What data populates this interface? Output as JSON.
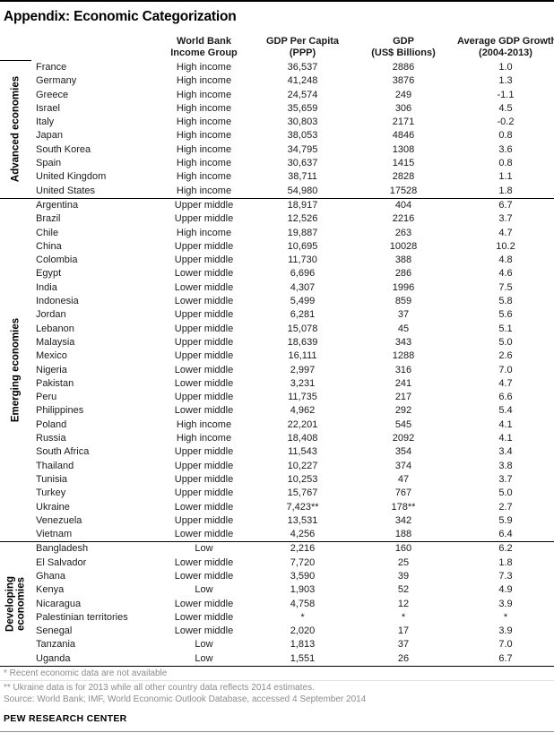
{
  "title": "Appendix: Economic Categorization",
  "branding": "PEW RESEARCH CENTER",
  "colors": {
    "text": "#1a1a1a",
    "footnote_gray": "#8a8c8e",
    "rule_black": "#000000",
    "rule_light": "#e2e2e2",
    "rule_bottom_gray": "#8c8c8c"
  },
  "chart_data": {
    "type": "table",
    "title": "Appendix: Economic Categorization",
    "column_headers": [
      {
        "line1": "World Bank",
        "line2": "Income Group"
      },
      {
        "line1": "GDP Per Capita",
        "line2": "(PPP)"
      },
      {
        "line1": "GDP",
        "line2": "(US$ Billions)"
      },
      {
        "line1": "Average GDP Growth",
        "line2": "(2004-2013)"
      }
    ],
    "groups": [
      {
        "label_lines": [
          "Advanced economies"
        ],
        "rows": [
          [
            "France",
            "High income",
            "36,537",
            "2886",
            "1.0"
          ],
          [
            "Germany",
            "High income",
            "41,248",
            "3876",
            "1.3"
          ],
          [
            "Greece",
            "High income",
            "24,574",
            "249",
            "-1.1"
          ],
          [
            "Israel",
            "High income",
            "35,659",
            "306",
            "4.5"
          ],
          [
            "Italy",
            "High income",
            "30,803",
            "2171",
            "-0.2"
          ],
          [
            "Japan",
            "High income",
            "38,053",
            "4846",
            "0.8"
          ],
          [
            "South Korea",
            "High income",
            "34,795",
            "1308",
            "3.6"
          ],
          [
            "Spain",
            "High income",
            "30,637",
            "1415",
            "0.8"
          ],
          [
            "United Kingdom",
            "High income",
            "38,711",
            "2828",
            "1.1"
          ],
          [
            "United States",
            "High income",
            "54,980",
            "17528",
            "1.8"
          ]
        ]
      },
      {
        "label_lines": [
          "Emerging economies"
        ],
        "rows": [
          [
            "Argentina",
            "Upper middle",
            "18,917",
            "404",
            "6.7"
          ],
          [
            "Brazil",
            "Upper middle",
            "12,526",
            "2216",
            "3.7"
          ],
          [
            "Chile",
            "High income",
            "19,887",
            "263",
            "4.7"
          ],
          [
            "China",
            "Upper middle",
            "10,695",
            "10028",
            "10.2"
          ],
          [
            "Colombia",
            "Upper middle",
            "11,730",
            "388",
            "4.8"
          ],
          [
            "Egypt",
            "Lower middle",
            "6,696",
            "286",
            "4.6"
          ],
          [
            "India",
            "Lower middle",
            "4,307",
            "1996",
            "7.5"
          ],
          [
            "Indonesia",
            "Lower middle",
            "5,499",
            "859",
            "5.8"
          ],
          [
            "Jordan",
            "Upper middle",
            "6,281",
            "37",
            "5.6"
          ],
          [
            "Lebanon",
            "Upper middle",
            "15,078",
            "45",
            "5.1"
          ],
          [
            "Malaysia",
            "Upper middle",
            "18,639",
            "343",
            "5.0"
          ],
          [
            "Mexico",
            "Upper middle",
            "16,111",
            "1288",
            "2.6"
          ],
          [
            "Nigeria",
            "Lower middle",
            "2,997",
            "316",
            "7.0"
          ],
          [
            "Pakistan",
            "Lower middle",
            "3,231",
            "241",
            "4.7"
          ],
          [
            "Peru",
            "Upper middle",
            "11,735",
            "217",
            "6.6"
          ],
          [
            "Philippines",
            "Lower middle",
            "4,962",
            "292",
            "5.4"
          ],
          [
            "Poland",
            "High income",
            "22,201",
            "545",
            "4.1"
          ],
          [
            "Russia",
            "High income",
            "18,408",
            "2092",
            "4.1"
          ],
          [
            "South Africa",
            "Upper middle",
            "11,543",
            "354",
            "3.4"
          ],
          [
            "Thailand",
            "Upper middle",
            "10,227",
            "374",
            "3.8"
          ],
          [
            "Tunisia",
            "Upper middle",
            "10,253",
            "47",
            "3.7"
          ],
          [
            "Turkey",
            "Upper middle",
            "15,767",
            "767",
            "5.0"
          ],
          [
            "Ukraine",
            "Lower middle",
            "7,423**",
            "178**",
            "2.7"
          ],
          [
            "Venezuela",
            "Upper middle",
            "13,531",
            "342",
            "5.9"
          ],
          [
            "Vietnam",
            "Lower middle",
            "4,256",
            "188",
            "6.4"
          ]
        ]
      },
      {
        "label_lines": [
          "Developing",
          "economies"
        ],
        "rows": [
          [
            "Bangladesh",
            "Low",
            "2,216",
            "160",
            "6.2"
          ],
          [
            "El Salvador",
            "Lower middle",
            "7,720",
            "25",
            "1.8"
          ],
          [
            "Ghana",
            "Lower middle",
            "3,590",
            "39",
            "7.3"
          ],
          [
            "Kenya",
            "Low",
            "1,903",
            "52",
            "4.9"
          ],
          [
            "Nicaragua",
            "Lower middle",
            "4,758",
            "12",
            "3.9"
          ],
          [
            "Palestinian territories",
            "Lower middle",
            "*",
            "*",
            "*"
          ],
          [
            "Senegal",
            "Lower middle",
            "2,020",
            "17",
            "3.9"
          ],
          [
            "Tanzania",
            "Low",
            "1,813",
            "37",
            "7.0"
          ],
          [
            "Uganda",
            "Low",
            "1,551",
            "26",
            "6.7"
          ]
        ]
      }
    ],
    "footnotes": [
      "* Recent economic data are not available",
      "** Ukraine data is for 2013 while all other country data reflects 2014 estimates."
    ],
    "source": "Source: World Bank; IMF, World Economic Outlook Database,  accessed 4 September 2014"
  }
}
